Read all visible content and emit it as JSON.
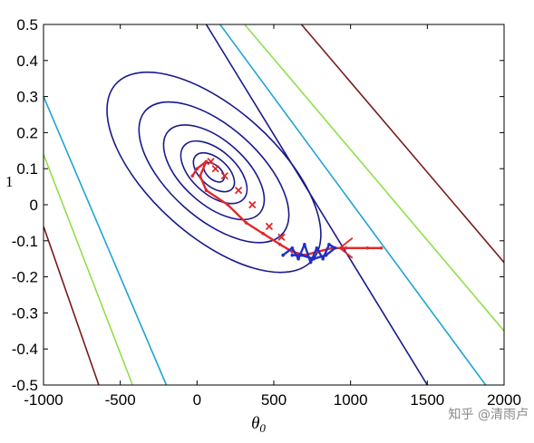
{
  "chart_data": {
    "type": "contour",
    "xlabel": "θ₀",
    "ylabel_visible": "1",
    "xlim": [
      -1000,
      2000
    ],
    "ylim": [
      -0.5,
      0.5
    ],
    "x_ticks": [
      -1000,
      -500,
      0,
      500,
      1000,
      1500,
      2000
    ],
    "x_tick_labels": [
      "-1000",
      "-500",
      "0",
      "500",
      "1000",
      "1500",
      "2000"
    ],
    "y_ticks": [
      0.5,
      0.4,
      0.3,
      0.2,
      0.1,
      0,
      -0.1,
      -0.2,
      -0.3,
      -0.4,
      -0.5
    ],
    "y_tick_labels": [
      "0.5",
      "0.4",
      "0.3",
      "0.2",
      "0.1",
      "0",
      "-0.1",
      "-0.2",
      "-0.3",
      "-0.4",
      "-0.5"
    ],
    "contour_center": [
      110,
      0.09
    ],
    "contour_levels": [
      {
        "semi_major": 80,
        "semi_minor": 0.035,
        "color": "#1a1a8c"
      },
      {
        "semi_major": 160,
        "semi_minor": 0.07,
        "color": "#1a1a8c"
      },
      {
        "semi_major": 260,
        "semi_minor": 0.11,
        "color": "#1a1a8c"
      },
      {
        "semi_major": 400,
        "semi_minor": 0.16,
        "color": "#1a1a8c"
      },
      {
        "semi_major": 600,
        "semi_minor": 0.23,
        "color": "#1a1a8c"
      },
      {
        "semi_major": 860,
        "semi_minor": 0.32,
        "color": "#1a1a8c"
      }
    ],
    "diagonal_contours": [
      {
        "side": "lower-left",
        "points": [
          [
            -1000,
            0.3
          ],
          [
            -200,
            -0.5
          ]
        ],
        "color": "#1fa3d6"
      },
      {
        "side": "lower-left",
        "points": [
          [
            -1000,
            0.14
          ],
          [
            -420,
            -0.5
          ]
        ],
        "color": "#8fe04a"
      },
      {
        "side": "lower-left",
        "points": [
          [
            -1000,
            -0.06
          ],
          [
            -640,
            -0.5
          ]
        ],
        "color": "#7a1a1a"
      },
      {
        "side": "upper-right",
        "points": [
          [
            60,
            0.5
          ],
          [
            1500,
            -0.5
          ]
        ],
        "color": "#1a1a8c"
      },
      {
        "side": "upper-right",
        "points": [
          [
            150,
            0.5
          ],
          [
            1880,
            -0.5
          ]
        ],
        "color": "#1fa3d6"
      },
      {
        "side": "upper-right",
        "points": [
          [
            310,
            0.5
          ],
          [
            2000,
            -0.35
          ]
        ],
        "color": "#8fe04a"
      },
      {
        "side": "upper-right",
        "points": [
          [
            680,
            0.5
          ],
          [
            2000,
            -0.16
          ]
        ],
        "color": "#7a1a1a"
      }
    ],
    "series": [
      {
        "marker": "x",
        "color": "#e0282a",
        "points": [
          [
            90,
            0.12
          ],
          [
            120,
            0.1
          ],
          [
            180,
            0.08
          ],
          [
            270,
            0.04
          ],
          [
            360,
            0.0
          ],
          [
            470,
            -0.06
          ],
          [
            550,
            -0.09
          ]
        ]
      },
      {
        "marker": "line",
        "color": "#e0282a",
        "points": [
          [
            -30,
            0.08
          ],
          [
            0,
            0.1
          ],
          [
            60,
            0.12
          ],
          [
            20,
            0.08
          ],
          [
            60,
            0.04
          ],
          [
            200,
            0.0
          ],
          [
            320,
            -0.05
          ],
          [
            430,
            -0.08
          ],
          [
            540,
            -0.11
          ],
          [
            620,
            -0.13
          ],
          [
            700,
            -0.14
          ],
          [
            790,
            -0.13
          ],
          [
            880,
            -0.12
          ],
          [
            970,
            -0.12
          ],
          [
            1110,
            -0.12
          ],
          [
            1200,
            -0.12
          ]
        ]
      },
      {
        "marker": "line",
        "color": "#1f2fc8",
        "points": [
          [
            560,
            -0.14
          ],
          [
            620,
            -0.12
          ],
          [
            660,
            -0.15
          ],
          [
            700,
            -0.11
          ],
          [
            740,
            -0.16
          ],
          [
            780,
            -0.12
          ],
          [
            820,
            -0.15
          ],
          [
            860,
            -0.11
          ],
          [
            900,
            -0.12
          ],
          [
            840,
            -0.14
          ],
          [
            760,
            -0.15
          ],
          [
            680,
            -0.14
          ],
          [
            620,
            -0.14
          ]
        ]
      }
    ],
    "arrow": {
      "from": [
        1200,
        -0.12
      ],
      "to": [
        930,
        -0.12
      ],
      "color": "#e0282a"
    }
  },
  "watermark": "知乎 @清雨卢"
}
